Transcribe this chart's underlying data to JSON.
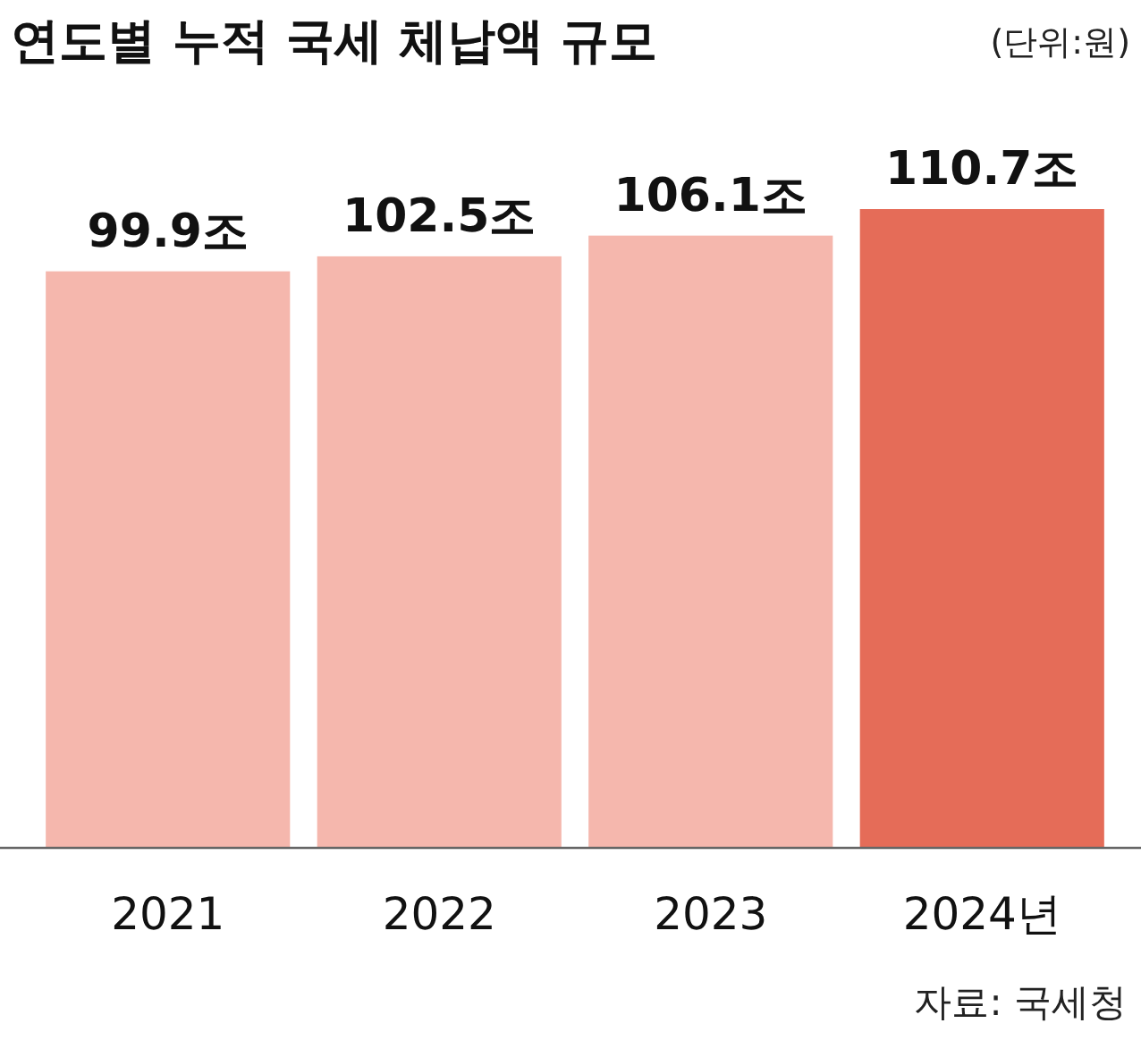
{
  "chart_data": {
    "type": "bar",
    "title": "연도별 누적 국세 체납액 규모",
    "subtitle": "(단위:원)",
    "categories": [
      "2021",
      "2022",
      "2023",
      "2024년"
    ],
    "values": [
      99.9,
      102.5,
      106.1,
      110.7
    ],
    "colors": [
      "#f5b7ad",
      "#f5b7ad",
      "#f5b7ad",
      "#e56c58"
    ],
    "value_labels": [
      "99.9조",
      "102.5조",
      "106.1조",
      "110.7조"
    ],
    "annotations": [
      "자료: 국세청"
    ]
  }
}
